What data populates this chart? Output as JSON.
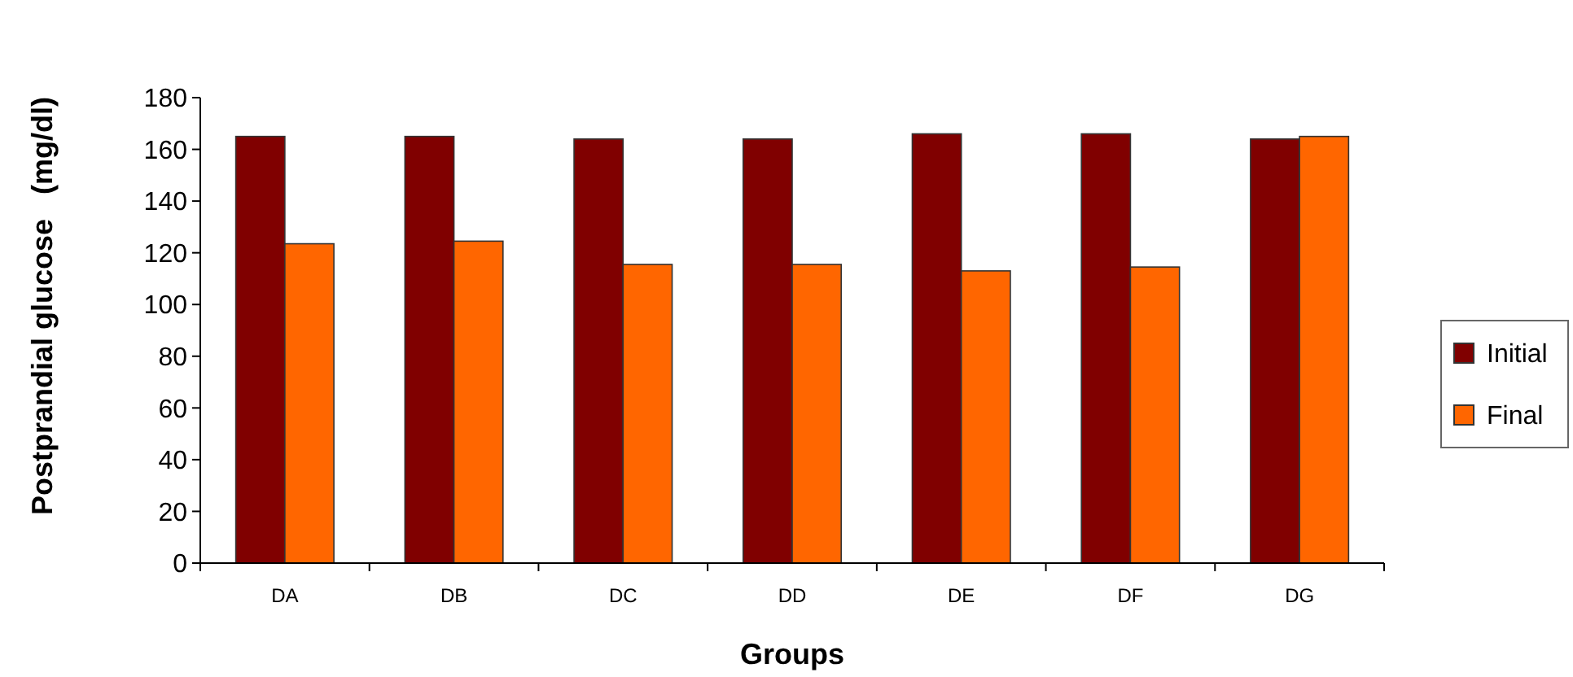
{
  "chart_data": {
    "type": "bar",
    "xlabel": "Groups",
    "ylabel": "Postprandial glucose   (mg/dl)",
    "categories": [
      "DA",
      "DB",
      "DC",
      "DD",
      "DE",
      "DF",
      "DG"
    ],
    "series": [
      {
        "name": "Initial",
        "color": "#800000",
        "values": [
          165,
          165,
          164,
          164,
          166,
          166,
          164
        ]
      },
      {
        "name": "Final",
        "color": "#ff6600",
        "values": [
          123.5,
          124.5,
          115.5,
          115.5,
          113,
          114.5,
          165
        ]
      }
    ],
    "ylim": [
      0,
      180
    ],
    "yticks": [
      0,
      20,
      40,
      60,
      80,
      100,
      120,
      140,
      160,
      180
    ],
    "grid": false,
    "legend": "right"
  }
}
